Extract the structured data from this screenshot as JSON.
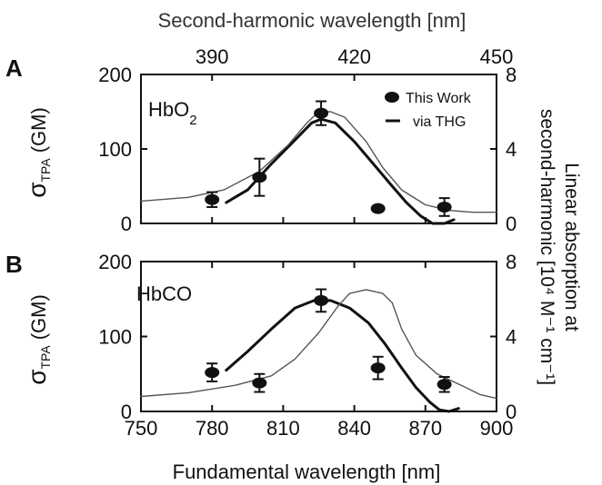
{
  "chart_data": [
    {
      "type": "scatter",
      "panel_label": "A",
      "species": "HbO",
      "species_subscript": "2",
      "xlabel": "Fundamental wavelength [nm]",
      "x_top_label": "Second-harmonic wavelength [nm]",
      "ylabel_main": "σ",
      "ylabel_sub": "TPA",
      "ylabel_unit": "(GM)",
      "ylabel_right": "Linear absorption at second-harmonic [10⁴ M⁻¹ cm⁻¹]",
      "xlim": [
        750,
        900
      ],
      "ylim": [
        0,
        200
      ],
      "y2lim": [
        0,
        8
      ],
      "x_ticks": [
        750,
        780,
        810,
        840,
        870,
        900
      ],
      "x_top_ticks": [
        390,
        420,
        450
      ],
      "y_ticks": [
        0,
        100,
        200
      ],
      "y2_ticks": [
        0,
        4,
        8
      ],
      "legend": {
        "position": "top-right",
        "entries": [
          "This Work",
          "via THG"
        ]
      },
      "series": [
        {
          "name": "This Work",
          "kind": "points",
          "points": [
            {
              "x": 780,
              "y": 32,
              "err": 10
            },
            {
              "x": 800,
              "y": 62,
              "err": 25
            },
            {
              "x": 826,
              "y": 148,
              "err": 16
            },
            {
              "x": 850,
              "y": 20,
              "err": 0
            },
            {
              "x": 878,
              "y": 22,
              "err": 12
            }
          ]
        },
        {
          "name": "via THG",
          "kind": "line",
          "axis": "left",
          "points": [
            [
              786,
              28
            ],
            [
              795,
              45
            ],
            [
              805,
              80
            ],
            [
              815,
              112
            ],
            [
              822,
              135
            ],
            [
              826,
              140
            ],
            [
              832,
              135
            ],
            [
              840,
              110
            ],
            [
              848,
              80
            ],
            [
              856,
              50
            ],
            [
              862,
              28
            ],
            [
              868,
              10
            ],
            [
              873,
              0
            ],
            [
              878,
              0
            ],
            [
              882,
              5
            ]
          ]
        },
        {
          "kind": "line",
          "axis": "right",
          "points": [
            [
              750,
              1.2
            ],
            [
              770,
              1.4
            ],
            [
              785,
              1.8
            ],
            [
              800,
              2.8
            ],
            [
              812,
              4.2
            ],
            [
              820,
              5.4
            ],
            [
              825,
              6.0
            ],
            [
              830,
              6.0
            ],
            [
              836,
              5.7
            ],
            [
              845,
              4.4
            ],
            [
              852,
              3.0
            ],
            [
              860,
              1.8
            ],
            [
              870,
              1.0
            ],
            [
              880,
              0.7
            ],
            [
              890,
              0.6
            ],
            [
              900,
              0.6
            ]
          ]
        }
      ]
    },
    {
      "type": "scatter",
      "panel_label": "B",
      "species": "HbCO",
      "xlabel": "Fundamental wavelength [nm]",
      "xlim": [
        750,
        900
      ],
      "ylim": [
        0,
        200
      ],
      "y2lim": [
        0,
        8
      ],
      "x_ticks": [
        750,
        780,
        810,
        840,
        870,
        900
      ],
      "y_ticks": [
        0,
        100,
        200
      ],
      "y2_ticks": [
        0,
        4,
        8
      ],
      "series": [
        {
          "name": "This Work",
          "kind": "points",
          "points": [
            {
              "x": 780,
              "y": 52,
              "err": 12
            },
            {
              "x": 800,
              "y": 38,
              "err": 12
            },
            {
              "x": 826,
              "y": 148,
              "err": 15
            },
            {
              "x": 850,
              "y": 58,
              "err": 15
            },
            {
              "x": 878,
              "y": 36,
              "err": 10
            }
          ]
        },
        {
          "name": "via THG",
          "kind": "line",
          "axis": "left",
          "points": [
            [
              786,
              55
            ],
            [
              795,
              80
            ],
            [
              805,
              110
            ],
            [
              815,
              138
            ],
            [
              823,
              148
            ],
            [
              830,
              148
            ],
            [
              838,
              138
            ],
            [
              846,
              118
            ],
            [
              853,
              90
            ],
            [
              860,
              58
            ],
            [
              866,
              32
            ],
            [
              872,
              12
            ],
            [
              876,
              2
            ],
            [
              880,
              0
            ],
            [
              884,
              4
            ]
          ]
        },
        {
          "kind": "line",
          "axis": "right",
          "points": [
            [
              750,
              0.8
            ],
            [
              770,
              1.0
            ],
            [
              790,
              1.4
            ],
            [
              805,
              1.9
            ],
            [
              815,
              2.8
            ],
            [
              825,
              4.2
            ],
            [
              833,
              5.6
            ],
            [
              838,
              6.3
            ],
            [
              845,
              6.5
            ],
            [
              852,
              6.3
            ],
            [
              856,
              5.8
            ],
            [
              860,
              4.4
            ],
            [
              866,
              3.0
            ],
            [
              875,
              2.0
            ],
            [
              885,
              1.4
            ],
            [
              893,
              0.9
            ],
            [
              900,
              0.7
            ]
          ]
        }
      ]
    }
  ]
}
